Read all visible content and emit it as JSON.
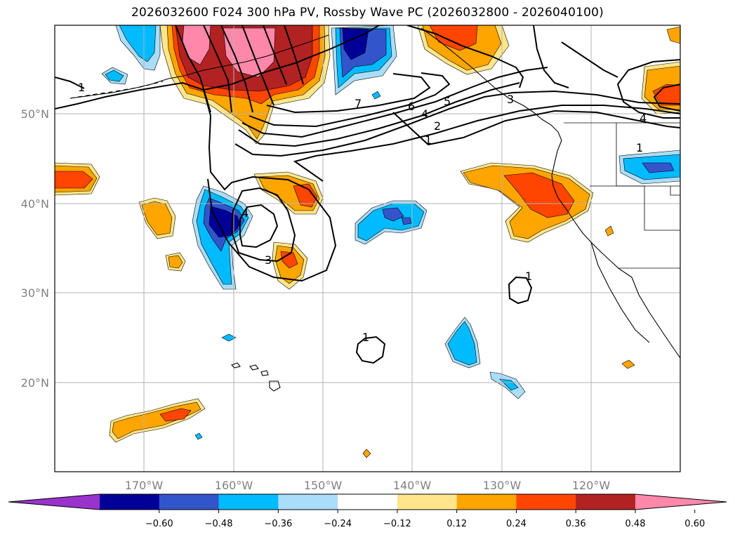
{
  "title": "2026032600 F024 300 hPa PV, Rossby Wave PC (2026032800 - 2026040100)",
  "lat_labels": [
    "50°N",
    "40°N",
    "30°N",
    "20°N"
  ],
  "lon_labels": [
    "170°W",
    "160°W",
    "150°W",
    "140°W",
    "130°W",
    "120°W"
  ],
  "contour_labels": [
    "1",
    "7",
    "6",
    "5",
    "4",
    "3",
    "2",
    "1",
    "4",
    "3",
    "1",
    "1",
    "4",
    "1"
  ],
  "colorbar": {
    "ticks": [
      "−0.60",
      "−0.48",
      "−0.36",
      "−0.24",
      "−0.12",
      "0.12",
      "0.24",
      "0.36",
      "0.48",
      "0.60"
    ],
    "colors": [
      "#9933cc",
      "#000099",
      "#3355cc",
      "#00bbff",
      "#aaddf7",
      "#ffffff",
      "#ffe68a",
      "#ffa500",
      "#ff4500",
      "#b22222",
      "#ff88aa"
    ]
  }
}
